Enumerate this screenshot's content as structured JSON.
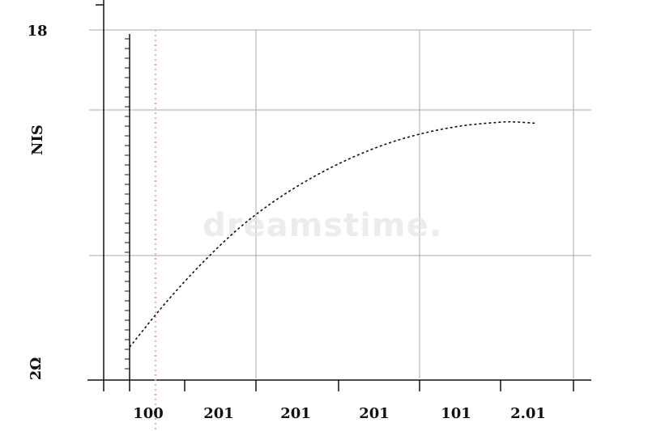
{
  "chart_data": {
    "type": "line",
    "title": "",
    "xlabel": "",
    "ylabel": "ΝΙS",
    "x_tick_labels": [
      "100",
      "201",
      "201",
      "201",
      "101",
      "2.01"
    ],
    "y_tick_labels": {
      "top": "18",
      "bottom": "2Ω"
    },
    "xlim": [
      0,
      6
    ],
    "ylim": [
      0,
      100
    ],
    "grid": true,
    "legend": "none",
    "series": [
      {
        "style": "dotted",
        "color": "#111111",
        "x": [
          0.0,
          0.5,
          1.0,
          1.5,
          2.0,
          2.5,
          3.0,
          3.5,
          4.0,
          4.5,
          5.0,
          5.2,
          5.5
        ],
        "y": [
          9,
          22,
          33.5,
          43.5,
          51.5,
          58,
          63.3,
          67.5,
          70.5,
          72.5,
          73.5,
          73.6,
          73.2
        ]
      }
    ],
    "marker_line": {
      "x": 0.35,
      "color": "#e6a8e0",
      "style": "dotted"
    }
  },
  "watermark": {
    "text": "dreamstime."
  },
  "colors": {
    "axis": "#111111",
    "grid": "#a8a8a8",
    "line": "#111111",
    "marker": "#e6a8e0"
  }
}
